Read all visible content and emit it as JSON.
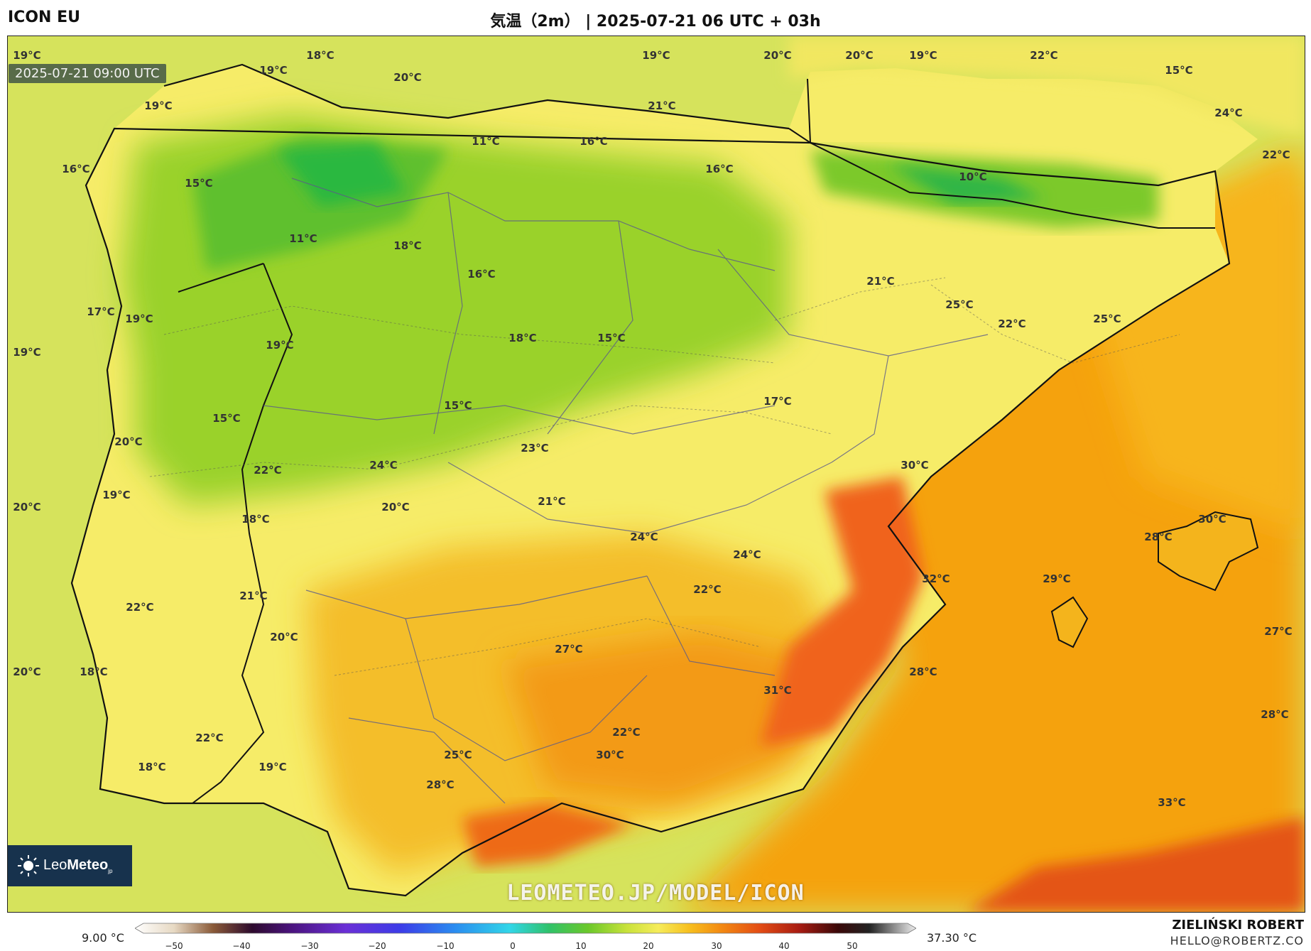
{
  "header": {
    "model": "ICON EU",
    "title": "気温（2m） | 2025-07-21 06 UTC + 03h"
  },
  "map": {
    "valid_time": "2025-07-21 09:00 UTC",
    "watermark": "LEOMETEO.JP/MODEL/ICON",
    "labels": [
      "19°C",
      "18°C",
      "19°C",
      "20°C",
      "19°C",
      "20°C",
      "20°C",
      "19°C",
      "22°C",
      "15°C",
      "19°C",
      "21°C",
      "24°C",
      "16°C",
      "11°C",
      "16°C",
      "16°C",
      "10°C",
      "22°C",
      "15°C",
      "11°C",
      "18°C",
      "16°C",
      "21°C",
      "25°C",
      "17°C",
      "19°C",
      "22°C",
      "25°C",
      "18°C",
      "15°C",
      "19°C",
      "19°C",
      "17°C",
      "15°C",
      "15°C",
      "20°C",
      "24°C",
      "23°C",
      "30°C",
      "22°C",
      "19°C",
      "21°C",
      "20°C",
      "18°C",
      "20°C",
      "24°C",
      "30°C",
      "28°C",
      "24°C",
      "22°C",
      "32°C",
      "29°C",
      "22°C",
      "21°C",
      "27°C",
      "20°C",
      "27°C",
      "20°C",
      "18°C",
      "28°C",
      "31°C",
      "28°C",
      "22°C",
      "22°C",
      "30°C",
      "25°C",
      "18°C",
      "19°C",
      "28°C",
      "33°C"
    ],
    "colors": {
      "sea_west": "#d5e45a",
      "land_base": "#f6ec6a",
      "green": "#8fd12a",
      "deep_green": "#2bbb3c",
      "orange": "#f4a410",
      "red_orange": "#f06a14",
      "sea_east": "#f7a80e"
    }
  },
  "logo": {
    "text_light": "Leo",
    "text_bold": "Meteo",
    "suffix": "jp"
  },
  "legend": {
    "min_label": "9.00 °C",
    "max_label": "37.30 °C",
    "ticks": [
      "−50",
      "−40",
      "−30",
      "−20",
      "−10",
      "0",
      "10",
      "20",
      "30",
      "40",
      "50"
    ]
  },
  "author": {
    "name": "ZIELIŃSKI ROBERT",
    "email": "HELLO@ROBERTZ.CO"
  }
}
